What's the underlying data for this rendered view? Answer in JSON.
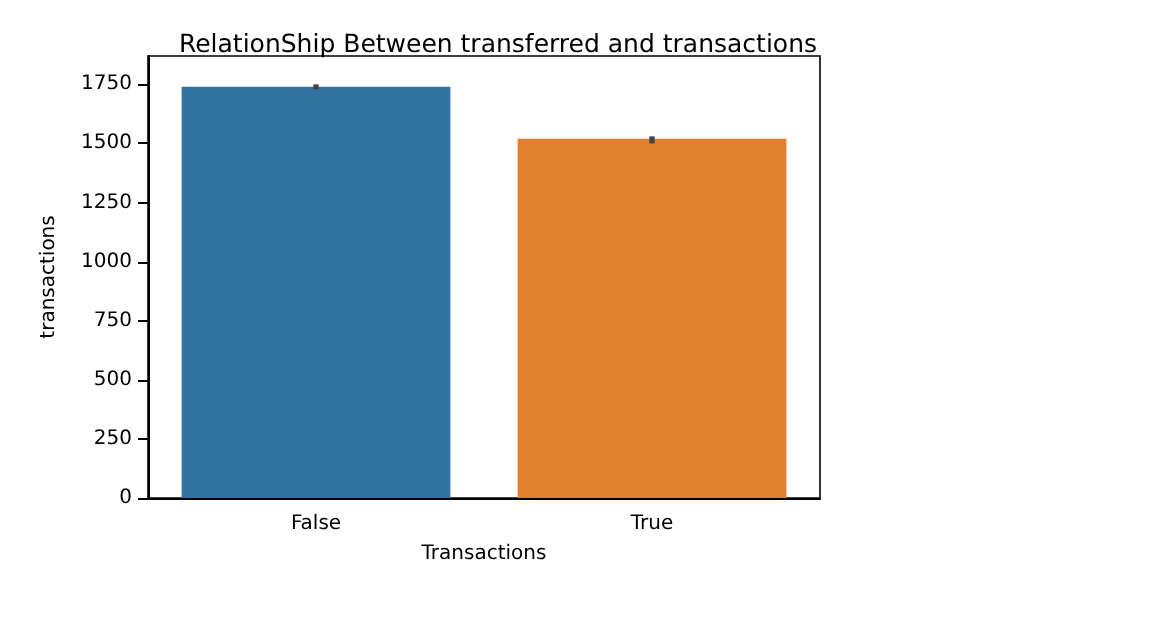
{
  "chart_data": {
    "type": "bar",
    "title": "RelationShip Between transferred and transactions",
    "xlabel": "Transactions",
    "ylabel": "transactions",
    "categories": [
      "False",
      "True"
    ],
    "values": [
      1740,
      1520
    ],
    "colors": [
      "#3274a1",
      "#e1812c"
    ],
    "errors": [
      [
        1730,
        1750
      ],
      [
        1500,
        1530
      ]
    ],
    "ylim": [
      0,
      1870
    ],
    "yticks": [
      0,
      250,
      500,
      750,
      1000,
      1250,
      1500,
      1750
    ],
    "grid": false
  }
}
